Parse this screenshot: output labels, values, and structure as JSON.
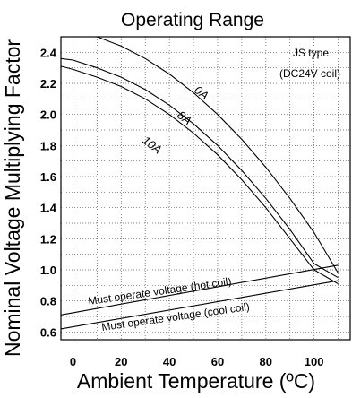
{
  "chart_data": {
    "type": "line",
    "title": "Operating Range",
    "xlabel": "Ambient Temperature (ºC)",
    "ylabel": "Nominal Voltage Multiplying Factor",
    "xlim": [
      -5,
      115
    ],
    "ylim": [
      0.55,
      2.5
    ],
    "xticks": [
      0,
      20,
      40,
      60,
      80,
      100
    ],
    "xtick_labels": [
      "0",
      "20",
      "40",
      "60",
      "80",
      "100"
    ],
    "yticks": [
      0.6,
      0.8,
      1.0,
      1.2,
      1.4,
      1.6,
      1.8,
      2.0,
      2.2,
      2.4
    ],
    "ytick_labels": [
      "0.6",
      "0.8",
      "1.0",
      "1.2",
      "1.4",
      "1.6",
      "1.8",
      "2.0",
      "2.2",
      "2.4"
    ],
    "grid": true,
    "annotation": [
      "JS type",
      "(DC24V coil)"
    ],
    "series": [
      {
        "name": "0A",
        "x": [
          10,
          20,
          30,
          40,
          50,
          60,
          70,
          80,
          90,
          100,
          110
        ],
        "y": [
          2.5,
          2.44,
          2.36,
          2.26,
          2.14,
          2.0,
          1.84,
          1.66,
          1.46,
          1.24,
          0.98
        ]
      },
      {
        "name": "8A",
        "x": [
          -5,
          0,
          10,
          20,
          30,
          40,
          50,
          60,
          70,
          80,
          90,
          100,
          110
        ],
        "y": [
          2.36,
          2.35,
          2.3,
          2.24,
          2.16,
          2.06,
          1.94,
          1.8,
          1.64,
          1.46,
          1.26,
          1.04,
          0.95
        ]
      },
      {
        "name": "10A",
        "x": [
          -5,
          0,
          10,
          20,
          30,
          40,
          50,
          60,
          70,
          80,
          90,
          100,
          110
        ],
        "y": [
          2.31,
          2.29,
          2.24,
          2.18,
          2.1,
          2.0,
          1.88,
          1.74,
          1.58,
          1.4,
          1.2,
          1.0,
          0.91
        ]
      },
      {
        "name": "Must operate voltage (hot coil)",
        "x": [
          -5,
          110
        ],
        "y": [
          0.71,
          1.03
        ]
      },
      {
        "name": "Must operate voltage (cool coil)",
        "x": [
          -5,
          110
        ],
        "y": [
          0.62,
          0.93
        ]
      }
    ]
  }
}
